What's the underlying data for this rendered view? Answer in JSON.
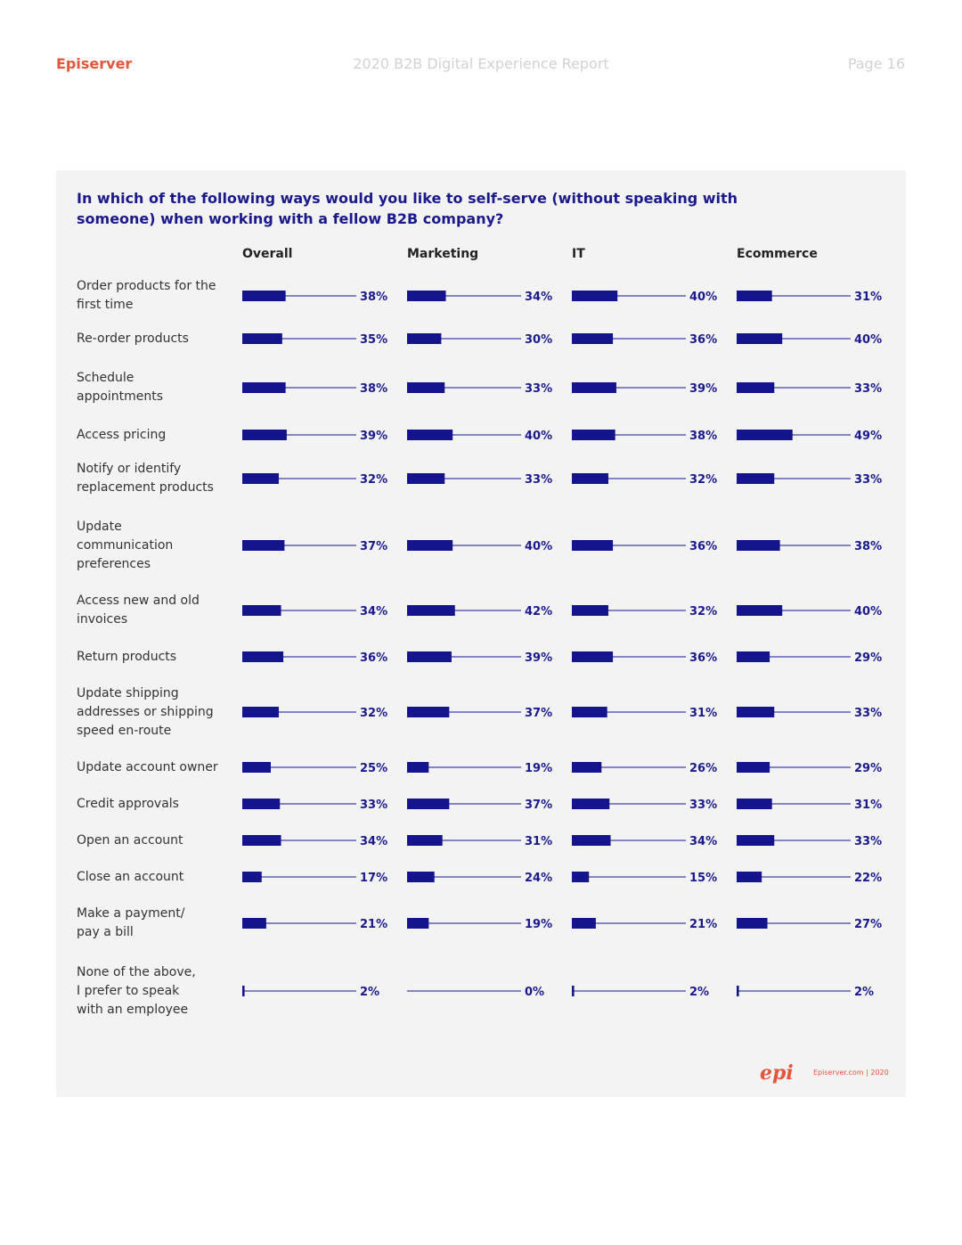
{
  "header": {
    "brand": "Episerver",
    "title": "2020 B2B Digital Experience Report",
    "page": "Page 16"
  },
  "footer": {
    "logo": "epi",
    "text": "Episerver.com | 2020"
  },
  "chart_data": {
    "type": "bar",
    "title": "In which of the following ways would you like to self-serve (without speaking with someone) when working with a fellow B2B company?",
    "categories": [
      "Order products for the first time",
      "Re-order products",
      "Schedule appointments",
      "Access pricing",
      "Notify or identify replacement products",
      "Update communication preferences",
      "Access new and old invoices",
      "Return products",
      "Update shipping addresses or shipping speed en-route",
      "Update account owner",
      "Credit approvals",
      "Open an account",
      "Close an account",
      "Make a payment/ pay a bill",
      "None of the above, I prefer to speak with an employee"
    ],
    "series": [
      {
        "name": "Overall",
        "values": [
          38,
          35,
          38,
          39,
          32,
          37,
          34,
          36,
          32,
          25,
          33,
          34,
          17,
          21,
          2
        ]
      },
      {
        "name": "Marketing",
        "values": [
          34,
          30,
          33,
          40,
          33,
          40,
          42,
          39,
          37,
          19,
          37,
          31,
          24,
          19,
          0
        ]
      },
      {
        "name": "IT",
        "values": [
          40,
          36,
          39,
          38,
          32,
          36,
          32,
          36,
          31,
          26,
          33,
          34,
          15,
          21,
          2
        ]
      },
      {
        "name": "Ecommerce",
        "values": [
          31,
          40,
          33,
          49,
          33,
          38,
          40,
          29,
          33,
          29,
          31,
          33,
          22,
          27,
          2
        ]
      }
    ],
    "labels": [
      [
        "38%",
        "34%",
        "40%",
        "31%"
      ],
      [
        "35%",
        "30%",
        "36%",
        "40%"
      ],
      [
        "38%",
        "33%",
        "39%",
        "33%"
      ],
      [
        "39%",
        "40%",
        "38%",
        "49%"
      ],
      [
        "32%",
        "33%",
        "32%",
        "33%"
      ],
      [
        "37%",
        "40%",
        "36%",
        "38%"
      ],
      [
        "34%",
        "42%",
        "32%",
        "40%"
      ],
      [
        "36%",
        "39%",
        "36%",
        "29%"
      ],
      [
        "32%",
        "37%",
        "31%",
        "33%"
      ],
      [
        "25%",
        "19%",
        "26%",
        "29%"
      ],
      [
        "33%",
        "37%",
        "33%",
        "31%"
      ],
      [
        "34%",
        "31%",
        "34%",
        "33%"
      ],
      [
        "17%",
        "24%",
        "15%",
        "22%"
      ],
      [
        "21%",
        "19%",
        "21%",
        "27%"
      ],
      [
        "2%",
        "0%",
        "2%",
        "2%"
      ]
    ],
    "label_lines": [
      [
        "Order products for the",
        "first time"
      ],
      [
        "Re-order products"
      ],
      [
        "Schedule",
        "appointments"
      ],
      [
        "Access pricing"
      ],
      [
        "Notify or identify",
        "replacement products"
      ],
      [
        "Update",
        "communication",
        "preferences"
      ],
      [
        "Access new and old",
        "invoices"
      ],
      [
        "Return products"
      ],
      [
        "Update shipping",
        "addresses or shipping",
        "speed en-route"
      ],
      [
        "Update account owner"
      ],
      [
        "Credit approvals"
      ],
      [
        "Open an account"
      ],
      [
        "Close an account"
      ],
      [
        "Make a payment/",
        "pay a bill"
      ],
      [
        "None of the above,",
        "I prefer to speak",
        "with an employee"
      ]
    ],
    "colors": {
      "bar": "#14148c",
      "line": "#14148c",
      "text": "#1a1a8c"
    }
  }
}
